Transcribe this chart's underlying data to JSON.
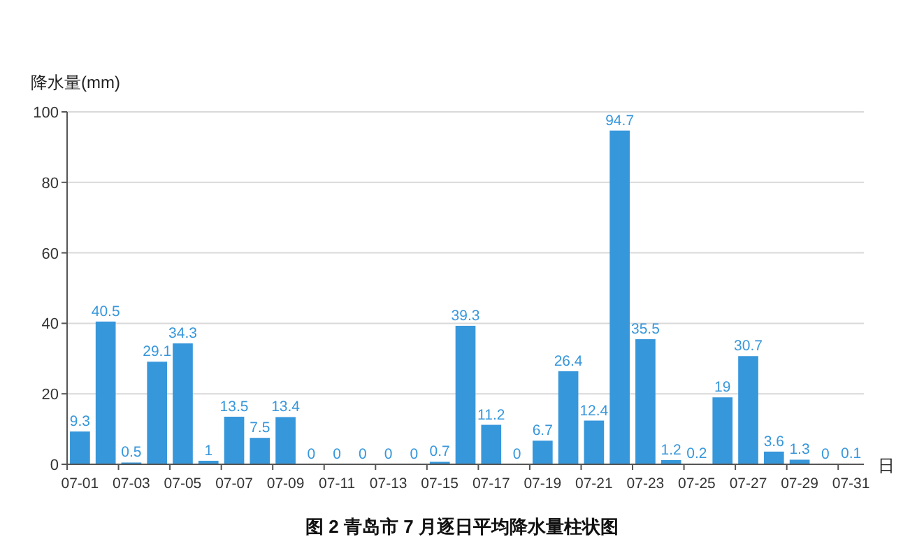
{
  "chart_data": {
    "type": "bar",
    "title": "图 2  青岛市 7 月逐日平均降水量柱状图",
    "xlabel": "日",
    "ylabel": "降水量(mm)",
    "categories": [
      "07-01",
      null,
      "07-03",
      null,
      "07-05",
      null,
      "07-07",
      null,
      "07-09",
      null,
      "07-11",
      null,
      "07-13",
      null,
      "07-15",
      null,
      "07-17",
      null,
      "07-19",
      null,
      "07-21",
      null,
      "07-23",
      null,
      "07-25",
      null,
      "07-27",
      null,
      "07-29",
      null,
      "07-31"
    ],
    "values": [
      9.3,
      40.5,
      0.5,
      29.1,
      34.3,
      1,
      13.5,
      7.5,
      13.4,
      0,
      0,
      0,
      0,
      0,
      0.7,
      39.3,
      11.2,
      0,
      6.7,
      26.4,
      12.4,
      94.7,
      35.5,
      1.2,
      0.2,
      19,
      30.7,
      3.6,
      1.3,
      0,
      0.1
    ],
    "color": "#3797db",
    "ylim": [
      0,
      100
    ],
    "yticks": [
      0,
      20,
      40,
      60,
      80,
      100
    ],
    "grid": "y",
    "data_labels": true
  }
}
